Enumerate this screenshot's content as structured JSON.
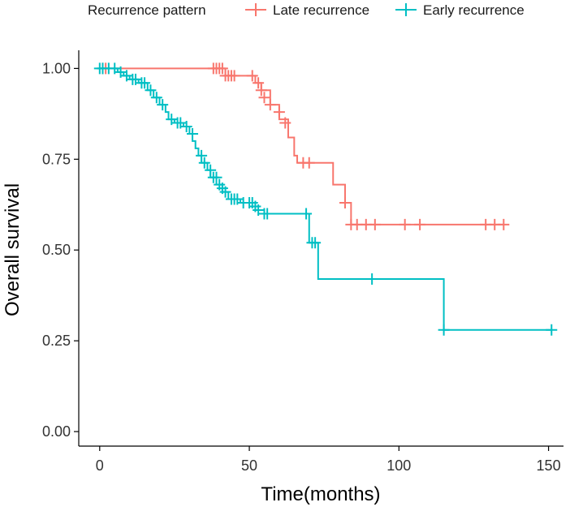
{
  "chart_data": {
    "type": "line",
    "subtype": "kaplan-meier",
    "xlabel": "Time(months)",
    "ylabel": "Overall survival",
    "xlim": [
      -7,
      155
    ],
    "ylim": [
      -0.04,
      1.05
    ],
    "xticks": [
      0,
      50,
      100,
      150
    ],
    "yticks": [
      0.0,
      0.25,
      0.5,
      0.75,
      1.0
    ],
    "ytick_labels": [
      "0.00",
      "0.25",
      "0.50",
      "0.75",
      "1.00"
    ],
    "grid": false,
    "legend": {
      "title": "Recurrence pattern",
      "position": "top",
      "entries": [
        "Late recurrence",
        "Early recurrence"
      ]
    },
    "series": [
      {
        "name": "Late recurrence",
        "color": "#F8766D",
        "steps": [
          [
            0,
            1.0
          ],
          [
            42,
            0.98
          ],
          [
            52,
            0.96
          ],
          [
            54,
            0.94
          ],
          [
            57,
            0.9
          ],
          [
            60,
            0.86
          ],
          [
            63,
            0.81
          ],
          [
            65,
            0.76
          ],
          [
            66,
            0.74
          ],
          [
            78,
            0.68
          ],
          [
            82,
            0.63
          ],
          [
            84,
            0.57
          ],
          [
            135,
            0.57
          ]
        ],
        "censored": [
          [
            1,
            1.0
          ],
          [
            2,
            1.0
          ],
          [
            38,
            1.0
          ],
          [
            39,
            1.0
          ],
          [
            40,
            1.0
          ],
          [
            41,
            1.0
          ],
          [
            42,
            0.98
          ],
          [
            43,
            0.98
          ],
          [
            44,
            0.98
          ],
          [
            45,
            0.98
          ],
          [
            51,
            0.98
          ],
          [
            53,
            0.96
          ],
          [
            54,
            0.94
          ],
          [
            55,
            0.92
          ],
          [
            57,
            0.9
          ],
          [
            60,
            0.88
          ],
          [
            62,
            0.85
          ],
          [
            68,
            0.74
          ],
          [
            70,
            0.74
          ],
          [
            82,
            0.63
          ],
          [
            84,
            0.57
          ],
          [
            86,
            0.57
          ],
          [
            89,
            0.57
          ],
          [
            92,
            0.57
          ],
          [
            102,
            0.57
          ],
          [
            107,
            0.57
          ],
          [
            129,
            0.57
          ],
          [
            132,
            0.57
          ],
          [
            135,
            0.57
          ]
        ]
      },
      {
        "name": "Early recurrence",
        "color": "#00BFC4",
        "steps": [
          [
            0,
            1.0
          ],
          [
            6,
            0.99
          ],
          [
            8,
            0.98
          ],
          [
            10,
            0.97
          ],
          [
            13,
            0.96
          ],
          [
            16,
            0.94
          ],
          [
            18,
            0.92
          ],
          [
            20,
            0.9
          ],
          [
            22,
            0.88
          ],
          [
            23,
            0.86
          ],
          [
            25,
            0.85
          ],
          [
            28,
            0.84
          ],
          [
            30,
            0.82
          ],
          [
            31,
            0.8
          ],
          [
            32,
            0.78
          ],
          [
            33,
            0.76
          ],
          [
            34,
            0.74
          ],
          [
            36,
            0.72
          ],
          [
            37,
            0.7
          ],
          [
            39,
            0.68
          ],
          [
            41,
            0.66
          ],
          [
            43,
            0.64
          ],
          [
            47,
            0.63
          ],
          [
            52,
            0.61
          ],
          [
            55,
            0.6
          ],
          [
            70,
            0.52
          ],
          [
            73,
            0.42
          ],
          [
            115,
            0.28
          ],
          [
            151,
            0.28
          ]
        ],
        "censored": [
          [
            0,
            1.0
          ],
          [
            1,
            1.0
          ],
          [
            3,
            1.0
          ],
          [
            5,
            1.0
          ],
          [
            7,
            0.99
          ],
          [
            9,
            0.98
          ],
          [
            11,
            0.97
          ],
          [
            12,
            0.97
          ],
          [
            14,
            0.96
          ],
          [
            15,
            0.96
          ],
          [
            17,
            0.94
          ],
          [
            19,
            0.92
          ],
          [
            21,
            0.9
          ],
          [
            24,
            0.86
          ],
          [
            26,
            0.85
          ],
          [
            27,
            0.85
          ],
          [
            29,
            0.84
          ],
          [
            31,
            0.82
          ],
          [
            34,
            0.76
          ],
          [
            35,
            0.74
          ],
          [
            37,
            0.72
          ],
          [
            38,
            0.7
          ],
          [
            39,
            0.7
          ],
          [
            40,
            0.68
          ],
          [
            41,
            0.67
          ],
          [
            42,
            0.66
          ],
          [
            44,
            0.64
          ],
          [
            45,
            0.64
          ],
          [
            46,
            0.64
          ],
          [
            48,
            0.63
          ],
          [
            50,
            0.63
          ],
          [
            51,
            0.63
          ],
          [
            52,
            0.62
          ],
          [
            53,
            0.61
          ],
          [
            55,
            0.6
          ],
          [
            56,
            0.6
          ],
          [
            69,
            0.6
          ],
          [
            71,
            0.52
          ],
          [
            72,
            0.52
          ],
          [
            91,
            0.42
          ],
          [
            115,
            0.28
          ],
          [
            151,
            0.28
          ]
        ]
      }
    ]
  }
}
